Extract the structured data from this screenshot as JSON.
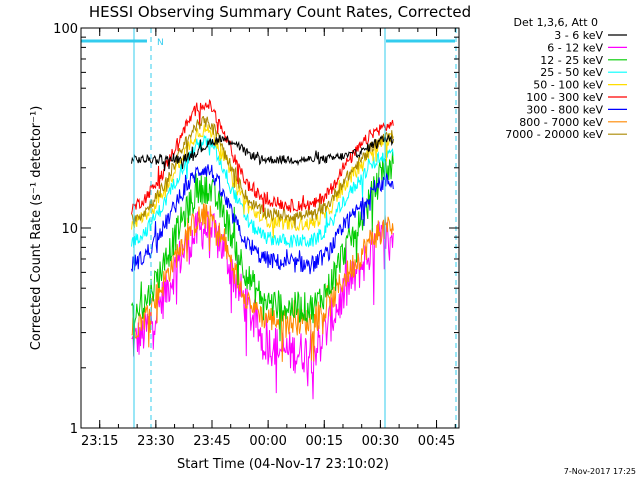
{
  "chart_data": {
    "type": "line",
    "title": "HESSI Observing Summary Count Rates, Corrected",
    "xlabel": "Start Time (04-Nov-17 23:10:02)",
    "ylabel": "Corrected Count Rate (s⁻¹ detector⁻¹)",
    "yscale": "log",
    "ylim": [
      1,
      100
    ],
    "xlim_minutes_after_23_10": [
      0,
      101
    ],
    "x_tick_labels": [
      "23:15",
      "23:30",
      "23:45",
      "00:00",
      "00:15",
      "00:30",
      "00:45"
    ],
    "x_tick_minutes": [
      5,
      20,
      35,
      50,
      65,
      80,
      95
    ],
    "y_tick_labels": [
      "1",
      "10",
      "100"
    ],
    "legend_header": "Det 1,3,6, Att 0",
    "legend_position": "top-right, outside plot",
    "night_marker": "N",
    "footer_date": "7-Nov-2017 17:25",
    "data_start_minute": 13.5,
    "data_end_minute": 83.5,
    "series": [
      {
        "name": "3 - 6 keV",
        "color": "#000000",
        "points": [
          [
            13.5,
            22
          ],
          [
            27,
            22
          ],
          [
            31,
            24
          ],
          [
            35,
            27
          ],
          [
            38,
            28
          ],
          [
            41,
            27
          ],
          [
            44,
            24
          ],
          [
            48,
            22
          ],
          [
            55,
            22
          ],
          [
            65,
            22
          ],
          [
            71,
            23
          ],
          [
            75,
            24
          ],
          [
            79,
            27
          ],
          [
            83.5,
            29
          ]
        ]
      },
      {
        "name": "6 - 12 keV",
        "color": "#ff00ff",
        "points": [
          [
            13.5,
            2.6
          ],
          [
            17,
            3.0
          ],
          [
            22,
            4.5
          ],
          [
            27,
            7.5
          ],
          [
            31,
            9.5
          ],
          [
            33,
            10
          ],
          [
            35,
            9.5
          ],
          [
            38,
            8
          ],
          [
            42,
            5.0
          ],
          [
            45,
            3.8
          ],
          [
            49,
            2.7
          ],
          [
            55,
            2.4
          ],
          [
            62,
            2.4
          ],
          [
            66,
            3.2
          ],
          [
            70,
            4.6
          ],
          [
            75,
            6.5
          ],
          [
            78,
            8
          ],
          [
            81,
            9
          ],
          [
            83.5,
            9
          ]
        ]
      },
      {
        "name": "12 - 25 keV",
        "color": "#00cc00",
        "points": [
          [
            13.5,
            3.6
          ],
          [
            17,
            4.2
          ],
          [
            22,
            6.5
          ],
          [
            27,
            11
          ],
          [
            31,
            15
          ],
          [
            33,
            16
          ],
          [
            35,
            15
          ],
          [
            38,
            12
          ],
          [
            42,
            7.5
          ],
          [
            45,
            5.5
          ],
          [
            49,
            4.3
          ],
          [
            55,
            4.0
          ],
          [
            62,
            4.0
          ],
          [
            66,
            5.0
          ],
          [
            70,
            7.5
          ],
          [
            75,
            11
          ],
          [
            78,
            15
          ],
          [
            81,
            19
          ],
          [
            83.5,
            21
          ]
        ]
      },
      {
        "name": "25 - 50 keV",
        "color": "#00ffff",
        "points": [
          [
            13.5,
            8.5
          ],
          [
            17,
            9.5
          ],
          [
            22,
            13
          ],
          [
            27,
            20
          ],
          [
            31,
            26
          ],
          [
            33,
            27
          ],
          [
            35,
            26
          ],
          [
            38,
            20
          ],
          [
            42,
            13.5
          ],
          [
            45,
            10.5
          ],
          [
            49,
            9.0
          ],
          [
            55,
            8.6
          ],
          [
            62,
            8.6
          ],
          [
            66,
            10
          ],
          [
            70,
            13.5
          ],
          [
            75,
            18
          ],
          [
            78,
            21
          ],
          [
            81,
            23
          ],
          [
            83.5,
            24
          ]
        ]
      },
      {
        "name": "50 - 100 keV",
        "color": "#ffdd00",
        "points": [
          [
            13.5,
            10.5
          ],
          [
            17,
            11.5
          ],
          [
            22,
            15
          ],
          [
            27,
            23
          ],
          [
            31,
            30
          ],
          [
            33,
            31
          ],
          [
            35,
            30
          ],
          [
            38,
            23
          ],
          [
            42,
            16
          ],
          [
            45,
            12.5
          ],
          [
            49,
            11
          ],
          [
            55,
            10.5
          ],
          [
            62,
            10.5
          ],
          [
            66,
            12
          ],
          [
            70,
            16
          ],
          [
            75,
            21
          ],
          [
            78,
            25
          ],
          [
            81,
            27
          ],
          [
            83.5,
            28
          ]
        ]
      },
      {
        "name": "100 - 300 keV",
        "color": "#ff0000",
        "points": [
          [
            13.5,
            12.5
          ],
          [
            17,
            14
          ],
          [
            22,
            19
          ],
          [
            27,
            30
          ],
          [
            31,
            40
          ],
          [
            33,
            42
          ],
          [
            35,
            40
          ],
          [
            38,
            30
          ],
          [
            42,
            20
          ],
          [
            45,
            16
          ],
          [
            49,
            14
          ],
          [
            55,
            13
          ],
          [
            62,
            13
          ],
          [
            66,
            15
          ],
          [
            70,
            20
          ],
          [
            75,
            26
          ],
          [
            78,
            30
          ],
          [
            81,
            32
          ],
          [
            83.5,
            33
          ]
        ]
      },
      {
        "name": "300 - 800 keV",
        "color": "#0000ff",
        "points": [
          [
            13.5,
            6.5
          ],
          [
            17,
            7.2
          ],
          [
            22,
            10
          ],
          [
            27,
            15
          ],
          [
            31,
            19
          ],
          [
            33,
            20
          ],
          [
            35,
            19
          ],
          [
            38,
            14.5
          ],
          [
            42,
            10
          ],
          [
            45,
            8
          ],
          [
            49,
            7
          ],
          [
            55,
            6.6
          ],
          [
            62,
            6.6
          ],
          [
            66,
            7.5
          ],
          [
            70,
            10
          ],
          [
            75,
            13
          ],
          [
            78,
            15.5
          ],
          [
            81,
            17
          ],
          [
            83.5,
            17
          ]
        ]
      },
      {
        "name": "800 - 7000 keV",
        "color": "#ff8800",
        "points": [
          [
            13.5,
            3.1
          ],
          [
            17,
            3.6
          ],
          [
            22,
            5.3
          ],
          [
            27,
            8.5
          ],
          [
            31,
            11
          ],
          [
            33,
            11.5
          ],
          [
            35,
            11
          ],
          [
            38,
            8.5
          ],
          [
            42,
            5.5
          ],
          [
            45,
            4.3
          ],
          [
            49,
            3.6
          ],
          [
            55,
            3.4
          ],
          [
            62,
            3.4
          ],
          [
            66,
            4
          ],
          [
            70,
            5.5
          ],
          [
            75,
            7.5
          ],
          [
            78,
            9
          ],
          [
            81,
            10
          ],
          [
            83.5,
            10
          ]
        ]
      },
      {
        "name": "7000 - 20000 keV",
        "color": "#aa8800",
        "points": [
          [
            13.5,
            11
          ],
          [
            17,
            12
          ],
          [
            22,
            16
          ],
          [
            27,
            25
          ],
          [
            31,
            33
          ],
          [
            33,
            34
          ],
          [
            35,
            33
          ],
          [
            38,
            25
          ],
          [
            42,
            17
          ],
          [
            45,
            13.5
          ],
          [
            49,
            12
          ],
          [
            55,
            11.5
          ],
          [
            62,
            11.5
          ],
          [
            66,
            13
          ],
          [
            70,
            17
          ],
          [
            75,
            22
          ],
          [
            78,
            26
          ],
          [
            81,
            28
          ],
          [
            83.5,
            29
          ]
        ]
      }
    ]
  }
}
